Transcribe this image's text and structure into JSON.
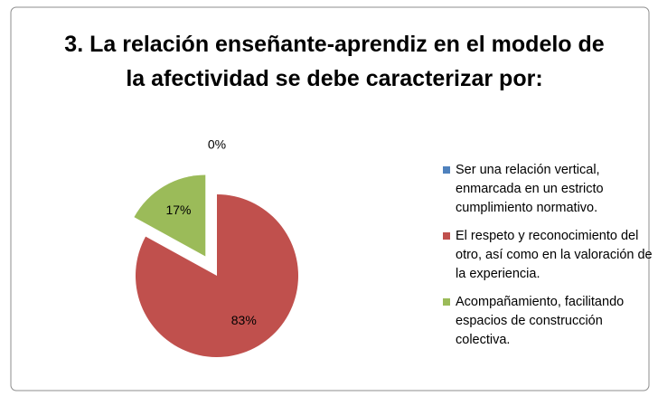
{
  "chart_data": {
    "type": "pie",
    "title": "3. La relación enseñante-aprendiz en el modelo de la afectividad se debe caracterizar por:",
    "categories": [
      "Ser una relación vertical, enmarcada en un estricto cumplimiento normativo.",
      "El respeto y reconocimiento del otro, así como en la valoración de la experiencia.",
      "Acompañamiento, facilitando espacios de construcción colectiva."
    ],
    "values": [
      0,
      83,
      17
    ],
    "value_labels": [
      "0%",
      "83%",
      "17%"
    ],
    "colors": [
      "#4f81bd",
      "#c0504d",
      "#9bbb59"
    ],
    "exploded": [
      false,
      false,
      true
    ],
    "legend": "right"
  }
}
